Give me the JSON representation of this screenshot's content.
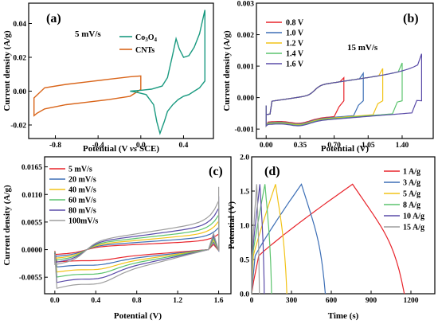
{
  "colors": {
    "co3o4": "#1a9a80",
    "cnts": "#d9651a",
    "red": "#e8232a",
    "blue": "#3d6fb6",
    "yellow": "#f2c318",
    "green": "#5cc46e",
    "purple": "#5a4ba8",
    "gray": "#9e9e9e"
  },
  "chart_data": [
    {
      "panel": "(a)",
      "type": "line",
      "annotation": "5 mV/s",
      "xlabel": "Potential (V vs SCE)",
      "ylabel": "Current density (A/g)",
      "xlim": [
        -1.05,
        0.68
      ],
      "ylim": [
        -0.028,
        0.052
      ],
      "xticks": [
        -0.8,
        -0.4,
        0.0,
        0.4
      ],
      "yticks": [
        -0.02,
        0.0,
        0.02,
        0.04
      ],
      "xtick_labels": [
        "-0.8",
        "-0.4",
        "0.0",
        "0.4"
      ],
      "ytick_labels": [
        "-0.02",
        "0.00",
        "0.02",
        "0.04"
      ],
      "legend_position": "top-center",
      "series": [
        {
          "name": "CNTs",
          "color_key": "cnts",
          "x": [
            -1.0,
            -0.9,
            -0.7,
            -0.5,
            -0.3,
            -0.1,
            0.0,
            0.0,
            -0.1,
            -0.3,
            -0.5,
            -0.7,
            -0.9,
            -0.97,
            -1.0
          ],
          "y": [
            -0.004,
            0.002,
            0.004,
            0.0055,
            0.007,
            0.0085,
            0.009,
            0.001,
            -0.003,
            -0.005,
            -0.0065,
            -0.008,
            -0.0105,
            -0.013,
            -0.0145
          ]
        },
        {
          "name": "Co3O4",
          "color_key": "co3o4",
          "x": [
            -0.1,
            0.0,
            0.1,
            0.2,
            0.25,
            0.3,
            0.33,
            0.36,
            0.4,
            0.45,
            0.5,
            0.55,
            0.6,
            0.6,
            0.55,
            0.5,
            0.45,
            0.4,
            0.35,
            0.3,
            0.25,
            0.22,
            0.18,
            0.15,
            0.12,
            0.05,
            -0.05,
            -0.1
          ],
          "y": [
            0.0,
            0.0005,
            0.0012,
            0.003,
            0.008,
            0.022,
            0.031,
            0.025,
            0.02,
            0.021,
            0.026,
            0.034,
            0.048,
            0.006,
            0.002,
            0.0,
            -0.002,
            -0.003,
            -0.005,
            -0.008,
            -0.012,
            -0.018,
            -0.025,
            -0.018,
            -0.008,
            -0.002,
            -0.0005,
            0.0
          ]
        }
      ]
    },
    {
      "panel": "(b)",
      "type": "line",
      "annotation": "15 mV/s",
      "xlabel": "Potential (V)",
      "ylabel": "Current density (A/g)",
      "xlim": [
        -0.1,
        1.72
      ],
      "ylim": [
        -0.0013,
        0.003
      ],
      "xticks": [
        0.0,
        0.35,
        0.7,
        1.05,
        1.4
      ],
      "yticks": [
        -0.001,
        0.0,
        0.001,
        0.002,
        0.003
      ],
      "xtick_labels": [
        "0.00",
        "0.35",
        "0.70",
        "1.05",
        "1.40"
      ],
      "ytick_labels": [
        "-0.001",
        "0.000",
        "0.001",
        "0.002",
        "0.003"
      ],
      "legend_position": "top-left",
      "series": [
        {
          "name": "0.8 V",
          "color_key": "red",
          "vmax": 0.8
        },
        {
          "name": "1.0 V",
          "color_key": "blue",
          "vmax": 1.0
        },
        {
          "name": "1.2 V",
          "color_key": "yellow",
          "vmax": 1.2
        },
        {
          "name": "1.4 V",
          "color_key": "green",
          "vmax": 1.4
        },
        {
          "name": "1.6 V",
          "color_key": "purple",
          "vmax": 1.6
        }
      ]
    },
    {
      "panel": "(c)",
      "type": "line",
      "xlabel": "Potential (V)",
      "ylabel": "Current density (A/g)",
      "xlim": [
        -0.1,
        1.72
      ],
      "ylim": [
        -0.0088,
        0.0185
      ],
      "xticks": [
        0.0,
        0.4,
        0.8,
        1.2,
        1.6
      ],
      "yticks": [
        -0.0055,
        0.0,
        0.0055,
        0.011,
        0.0165
      ],
      "xtick_labels": [
        "0.0",
        "0.4",
        "0.8",
        "1.2",
        "1.6"
      ],
      "ytick_labels": [
        "-0.0055",
        "0.0000",
        "0.0055",
        "0.0110",
        "0.0165"
      ],
      "legend_position": "top-left",
      "series": [
        {
          "name": "5 mV/s",
          "color_key": "red",
          "scale": 0.32
        },
        {
          "name": "20 mV/s",
          "color_key": "blue",
          "scale": 0.45
        },
        {
          "name": "40 mV/s",
          "color_key": "yellow",
          "scale": 0.58
        },
        {
          "name": "60 mV/s",
          "color_key": "green",
          "scale": 0.71
        },
        {
          "name": "80 mV/s",
          "color_key": "purple",
          "scale": 0.85
        },
        {
          "name": "100mV/s",
          "color_key": "gray",
          "scale": 1.0
        }
      ]
    },
    {
      "panel": "(d)",
      "type": "line",
      "xlabel": "Time (s)",
      "ylabel": "Potential (V)",
      "xlim": [
        0,
        1380
      ],
      "ylim": [
        0,
        2.0
      ],
      "xticks": [
        0,
        300,
        600,
        900,
        1200
      ],
      "yticks": [
        0.0,
        0.5,
        1.0,
        1.5,
        2.0
      ],
      "xtick_labels": [
        "0",
        "300",
        "600",
        "900",
        "1200"
      ],
      "ytick_labels": [
        "0.0",
        "0.5",
        "1.0",
        "1.5",
        "2.0"
      ],
      "legend_position": "top-right",
      "series": [
        {
          "name": "1   A/g",
          "color_key": "red",
          "t_charge": 760,
          "t_end": 1150
        },
        {
          "name": "3   A/g",
          "color_key": "blue",
          "t_charge": 375,
          "t_end": 555
        },
        {
          "name": "5   A/g",
          "color_key": "yellow",
          "t_charge": 180,
          "t_end": 265
        },
        {
          "name": "8   A/g",
          "color_key": "green",
          "t_charge": 100,
          "t_end": 150
        },
        {
          "name": "10  A/g",
          "color_key": "purple",
          "t_charge": 62,
          "t_end": 95
        },
        {
          "name": "15  A/g",
          "color_key": "gray",
          "t_charge": 38,
          "t_end": 58
        }
      ]
    }
  ]
}
